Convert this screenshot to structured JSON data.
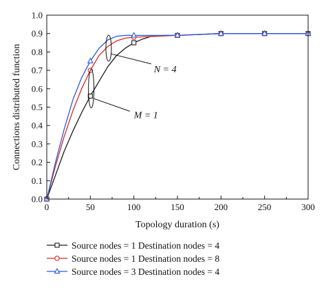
{
  "chart_data": {
    "type": "line",
    "xlabel": "Topology duration (s)",
    "ylabel": "Connections distributed function",
    "xlim": [
      0,
      300
    ],
    "ylim": [
      0,
      1.0
    ],
    "xticks": [
      0,
      50,
      100,
      150,
      200,
      250,
      300
    ],
    "yticks": [
      0.0,
      0.1,
      0.2,
      0.3,
      0.4,
      0.5,
      0.6,
      0.7,
      0.8,
      0.9,
      1.0
    ],
    "xtick_labels": [
      "0",
      "50",
      "100",
      "150",
      "200",
      "250",
      "300"
    ],
    "ytick_labels": [
      "0.0",
      "0.1",
      "0.2",
      "0.3",
      "0.4",
      "0.5",
      "0.6",
      "0.7",
      "0.8",
      "0.9",
      "1.0"
    ],
    "grid": false,
    "legend_position": "bottom",
    "series": [
      {
        "name": "Source nodes = 1 Destination nodes = 4",
        "color": "#1a1a1a",
        "marker": "square",
        "markers": [
          {
            "x": 0,
            "y": 0.0
          },
          {
            "x": 50,
            "y": 0.56
          },
          {
            "x": 100,
            "y": 0.85
          },
          {
            "x": 150,
            "y": 0.89
          },
          {
            "x": 200,
            "y": 0.9
          },
          {
            "x": 250,
            "y": 0.9
          },
          {
            "x": 300,
            "y": 0.9
          }
        ],
        "curve": [
          {
            "x": 0,
            "y": 0.0
          },
          {
            "x": 10,
            "y": 0.13
          },
          {
            "x": 20,
            "y": 0.26
          },
          {
            "x": 30,
            "y": 0.37
          },
          {
            "x": 40,
            "y": 0.47
          },
          {
            "x": 50,
            "y": 0.56
          },
          {
            "x": 60,
            "y": 0.64
          },
          {
            "x": 70,
            "y": 0.72
          },
          {
            "x": 80,
            "y": 0.78
          },
          {
            "x": 90,
            "y": 0.82
          },
          {
            "x": 100,
            "y": 0.85
          },
          {
            "x": 110,
            "y": 0.87
          },
          {
            "x": 120,
            "y": 0.885
          },
          {
            "x": 135,
            "y": 0.89
          },
          {
            "x": 150,
            "y": 0.89
          },
          {
            "x": 200,
            "y": 0.9
          },
          {
            "x": 250,
            "y": 0.9
          },
          {
            "x": 300,
            "y": 0.9
          }
        ]
      },
      {
        "name": "Source nodes = 1 Destination nodes = 8",
        "color": "#d62728",
        "marker": "circle",
        "markers": [
          {
            "x": 0,
            "y": 0.0
          },
          {
            "x": 50,
            "y": 0.7
          },
          {
            "x": 100,
            "y": 0.88
          },
          {
            "x": 150,
            "y": 0.89
          },
          {
            "x": 200,
            "y": 0.9
          },
          {
            "x": 250,
            "y": 0.9
          },
          {
            "x": 300,
            "y": 0.9
          }
        ],
        "curve": [
          {
            "x": 0,
            "y": 0.0
          },
          {
            "x": 10,
            "y": 0.18
          },
          {
            "x": 20,
            "y": 0.34
          },
          {
            "x": 30,
            "y": 0.48
          },
          {
            "x": 40,
            "y": 0.6
          },
          {
            "x": 50,
            "y": 0.7
          },
          {
            "x": 60,
            "y": 0.78
          },
          {
            "x": 70,
            "y": 0.83
          },
          {
            "x": 80,
            "y": 0.86
          },
          {
            "x": 90,
            "y": 0.875
          },
          {
            "x": 100,
            "y": 0.88
          },
          {
            "x": 125,
            "y": 0.885
          },
          {
            "x": 150,
            "y": 0.89
          },
          {
            "x": 200,
            "y": 0.9
          },
          {
            "x": 250,
            "y": 0.9
          },
          {
            "x": 300,
            "y": 0.9
          }
        ]
      },
      {
        "name": "Source nodes = 3 Destination nodes = 4",
        "color": "#2b59d9",
        "marker": "triangle",
        "markers": [
          {
            "x": 0,
            "y": 0.0
          },
          {
            "x": 50,
            "y": 0.75
          },
          {
            "x": 100,
            "y": 0.89
          },
          {
            "x": 150,
            "y": 0.89
          },
          {
            "x": 200,
            "y": 0.9
          },
          {
            "x": 250,
            "y": 0.9
          },
          {
            "x": 300,
            "y": 0.9
          }
        ],
        "curve": [
          {
            "x": 0,
            "y": 0.0
          },
          {
            "x": 10,
            "y": 0.2
          },
          {
            "x": 20,
            "y": 0.38
          },
          {
            "x": 30,
            "y": 0.54
          },
          {
            "x": 40,
            "y": 0.66
          },
          {
            "x": 50,
            "y": 0.75
          },
          {
            "x": 60,
            "y": 0.82
          },
          {
            "x": 70,
            "y": 0.865
          },
          {
            "x": 80,
            "y": 0.885
          },
          {
            "x": 90,
            "y": 0.89
          },
          {
            "x": 100,
            "y": 0.89
          },
          {
            "x": 150,
            "y": 0.89
          },
          {
            "x": 200,
            "y": 0.9
          },
          {
            "x": 250,
            "y": 0.9
          },
          {
            "x": 300,
            "y": 0.9
          }
        ]
      }
    ],
    "annotations": [
      {
        "label": "N = 4",
        "ellipse_center": {
          "x": 71,
          "y": 0.82
        },
        "text_at": {
          "x": 123,
          "y": 0.69
        }
      },
      {
        "label": "M = 1",
        "ellipse_center": {
          "x": 51,
          "y": 0.6
        },
        "text_at": {
          "x": 100,
          "y": 0.44
        }
      }
    ]
  }
}
